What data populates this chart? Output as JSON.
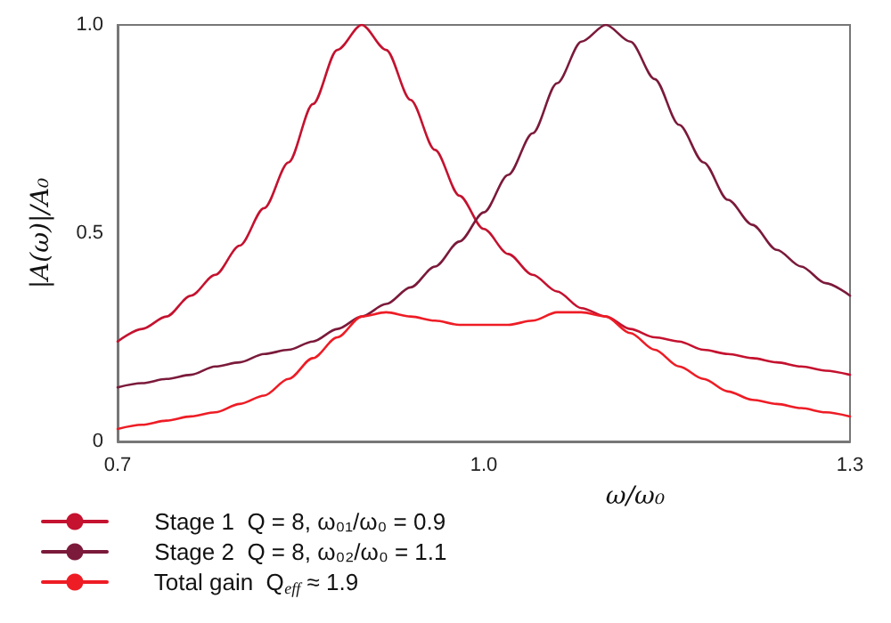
{
  "chart_data": {
    "type": "line",
    "xlabel": "ω/ω₀",
    "ylabel": "|A(ω)|/A₀",
    "x": [
      0.7,
      0.72,
      0.74,
      0.76,
      0.78,
      0.8,
      0.82,
      0.84,
      0.86,
      0.88,
      0.9,
      0.92,
      0.94,
      0.96,
      0.98,
      1.0,
      1.02,
      1.04,
      1.06,
      1.08,
      1.1,
      1.12,
      1.14,
      1.16,
      1.18,
      1.2,
      1.22,
      1.24,
      1.26,
      1.28,
      1.3
    ],
    "series": [
      {
        "name": "Stage 1  Q = 8, ω₀₁/ω₀ = 0.9",
        "color": "#c4122f",
        "values": [
          0.24,
          0.27,
          0.3,
          0.35,
          0.4,
          0.47,
          0.56,
          0.67,
          0.81,
          0.94,
          1.0,
          0.94,
          0.82,
          0.7,
          0.59,
          0.51,
          0.45,
          0.4,
          0.36,
          0.32,
          0.3,
          0.27,
          0.25,
          0.24,
          0.22,
          0.21,
          0.2,
          0.19,
          0.18,
          0.17,
          0.16
        ]
      },
      {
        "name": "Stage 2  Q = 8, ω₀₂/ω₀ = 1.1",
        "color": "#7b1a3a",
        "values": [
          0.13,
          0.14,
          0.15,
          0.16,
          0.18,
          0.19,
          0.21,
          0.22,
          0.24,
          0.27,
          0.3,
          0.33,
          0.37,
          0.42,
          0.48,
          0.55,
          0.64,
          0.74,
          0.86,
          0.96,
          1.0,
          0.96,
          0.87,
          0.76,
          0.67,
          0.58,
          0.52,
          0.46,
          0.42,
          0.38,
          0.35
        ]
      },
      {
        "name": "Total gain  Q$_{eff}$ ≈ 1.9",
        "color": "#ee1c25",
        "values": [
          0.03,
          0.04,
          0.05,
          0.06,
          0.07,
          0.09,
          0.11,
          0.15,
          0.2,
          0.25,
          0.3,
          0.31,
          0.3,
          0.29,
          0.28,
          0.28,
          0.28,
          0.29,
          0.31,
          0.31,
          0.3,
          0.26,
          0.22,
          0.18,
          0.15,
          0.12,
          0.1,
          0.09,
          0.08,
          0.07,
          0.06
        ]
      }
    ],
    "xlim": [
      0.7,
      1.3
    ],
    "xticks": [
      0.7,
      {
        "value": 1,
        "label": "1.0"
      },
      1.3
    ],
    "ylim": [
      0,
      1
    ],
    "yticks": [
      0,
      0.5,
      {
        "value": 1,
        "label": "1.0"
      }
    ],
    "grid": false,
    "legend": "bottom left",
    "marker": "none",
    "line_style": "solid"
  }
}
